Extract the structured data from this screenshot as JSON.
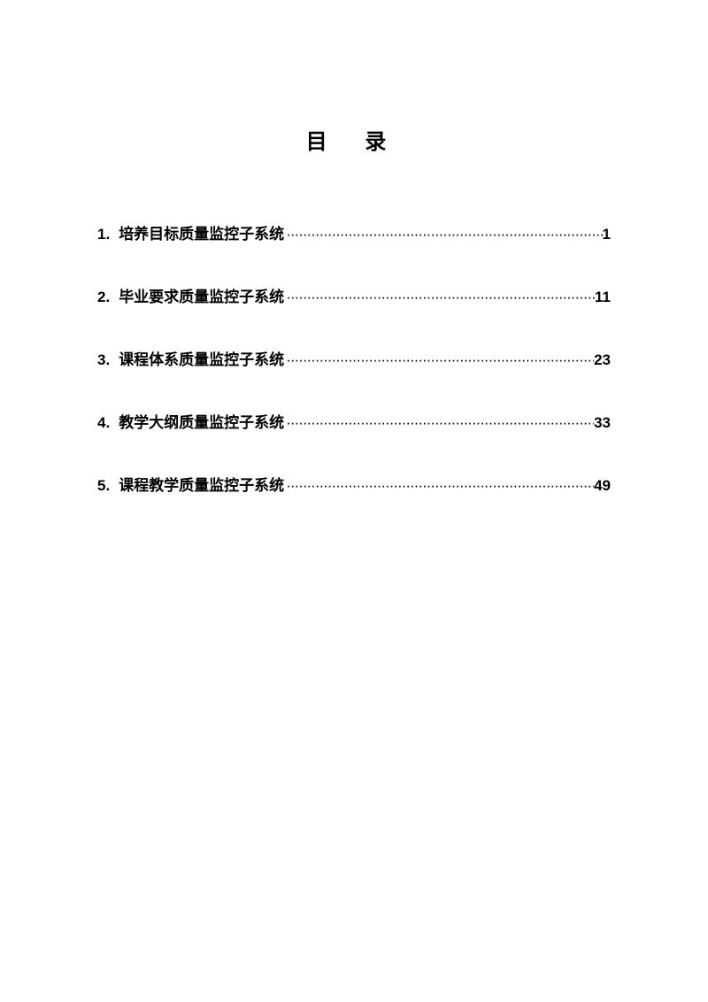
{
  "document": {
    "title": "目 录",
    "background_color": "#ffffff",
    "text_color": "#000000",
    "title_fontsize": 24,
    "entry_fontsize": 17,
    "font_family_title": "SimHei",
    "font_family_body": "SimHei",
    "entries": [
      {
        "number": "1.",
        "label": "培养目标质量监控子系统",
        "page": "1"
      },
      {
        "number": "2.",
        "label": "毕业要求质量监控子系统",
        "page": "11"
      },
      {
        "number": "3.",
        "label": "课程体系质量监控子系统",
        "page": "23"
      },
      {
        "number": "4.",
        "label": "教学大纲质量监控子系统",
        "page": "33"
      },
      {
        "number": "5.",
        "label": "课程教学质量监控子系统",
        "page": "49"
      }
    ]
  }
}
